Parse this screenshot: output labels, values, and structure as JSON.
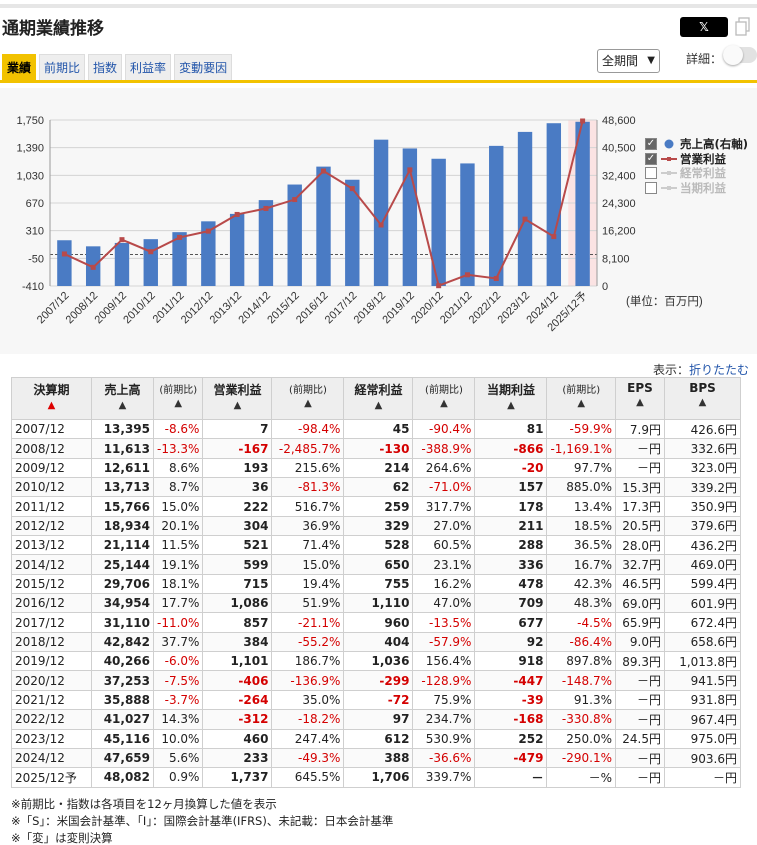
{
  "header": {
    "title": "通期業績推移",
    "share_label": "𝕏"
  },
  "tabs": [
    {
      "label": "業績",
      "active": true
    },
    {
      "label": "前期比",
      "active": false
    },
    {
      "label": "指数",
      "active": false
    },
    {
      "label": "利益率",
      "active": false
    },
    {
      "label": "変動要因",
      "active": false
    }
  ],
  "controls": {
    "period": "全期間",
    "detail_label": "詳細："
  },
  "chart_data": {
    "type": "bar",
    "categories": [
      "2007/12",
      "2008/12",
      "2009/12",
      "2010/12",
      "2011/12",
      "2012/12",
      "2013/12",
      "2014/12",
      "2015/12",
      "2016/12",
      "2017/12",
      "2018/12",
      "2019/12",
      "2020/12",
      "2021/12",
      "2022/12",
      "2023/12",
      "2024/12",
      "2025/12予"
    ],
    "series": [
      {
        "name": "売上高(右軸)",
        "type": "bar",
        "axis": "right",
        "color": "#4a7bc4",
        "values": [
          13395,
          11613,
          12611,
          13713,
          15766,
          18934,
          21114,
          25144,
          29706,
          34954,
          31110,
          42842,
          40266,
          37253,
          35888,
          41027,
          45116,
          47659,
          48082
        ]
      },
      {
        "name": "営業利益",
        "type": "line",
        "axis": "left",
        "color": "#b84a4a",
        "values": [
          7,
          -167,
          193,
          36,
          222,
          304,
          521,
          599,
          715,
          1086,
          857,
          384,
          1101,
          -406,
          -264,
          -312,
          460,
          233,
          1737
        ]
      }
    ],
    "left_axis": {
      "ticks": [
        "1,750",
        "1,390",
        "1,030",
        "670",
        "310",
        "-50",
        "-410"
      ],
      "range": [
        -410,
        1750
      ]
    },
    "right_axis": {
      "ticks": [
        "48,600",
        "40,500",
        "32,400",
        "24,300",
        "16,200",
        "8,100",
        "0"
      ],
      "range": [
        0,
        48600
      ]
    },
    "forecast_index": 18,
    "unit": "(単位：百万円)"
  },
  "legend": [
    {
      "label": "売上高(右軸)",
      "checked": true,
      "color": "#4a7bc4",
      "marker": "dot"
    },
    {
      "label": "営業利益",
      "checked": true,
      "color": "#b84a4a",
      "marker": "line"
    },
    {
      "label": "経常利益",
      "checked": false,
      "color": "#cccccc",
      "marker": "line"
    },
    {
      "label": "当期利益",
      "checked": false,
      "color": "#cccccc",
      "marker": "line"
    }
  ],
  "display": {
    "label": "表示：",
    "link": "折りたたむ"
  },
  "table": {
    "headers": [
      {
        "label": "決算期",
        "arrow": "▲",
        "red": true
      },
      {
        "label": "売上高",
        "arrow": "▲"
      },
      {
        "label": "(前期比)",
        "arrow": "▲",
        "sub": true
      },
      {
        "label": "営業利益",
        "arrow": "▲"
      },
      {
        "label": "(前期比)",
        "arrow": "▲",
        "sub": true
      },
      {
        "label": "経常利益",
        "arrow": "▲"
      },
      {
        "label": "(前期比)",
        "arrow": "▲",
        "sub": true
      },
      {
        "label": "当期利益",
        "arrow": "▲"
      },
      {
        "label": "(前期比)",
        "arrow": "▲",
        "sub": true
      },
      {
        "label": "EPS",
        "arrow": "▲"
      },
      {
        "label": "BPS",
        "arrow": "▲"
      }
    ],
    "rows": [
      [
        "2007/12",
        "13,395",
        "-8.6%",
        "7",
        "-98.4%",
        "45",
        "-90.4%",
        "81",
        "-59.9%",
        "7.9円",
        "426.6円"
      ],
      [
        "2008/12",
        "11,613",
        "-13.3%",
        "-167",
        "-2,485.7%",
        "-130",
        "-388.9%",
        "-866",
        "-1,169.1%",
        "－円",
        "332.6円"
      ],
      [
        "2009/12",
        "12,611",
        "8.6%",
        "193",
        "215.6%",
        "214",
        "264.6%",
        "-20",
        "97.7%",
        "－円",
        "323.0円"
      ],
      [
        "2010/12",
        "13,713",
        "8.7%",
        "36",
        "-81.3%",
        "62",
        "-71.0%",
        "157",
        "885.0%",
        "15.3円",
        "339.2円"
      ],
      [
        "2011/12",
        "15,766",
        "15.0%",
        "222",
        "516.7%",
        "259",
        "317.7%",
        "178",
        "13.4%",
        "17.3円",
        "350.9円"
      ],
      [
        "2012/12",
        "18,934",
        "20.1%",
        "304",
        "36.9%",
        "329",
        "27.0%",
        "211",
        "18.5%",
        "20.5円",
        "379.6円"
      ],
      [
        "2013/12",
        "21,114",
        "11.5%",
        "521",
        "71.4%",
        "528",
        "60.5%",
        "288",
        "36.5%",
        "28.0円",
        "436.2円"
      ],
      [
        "2014/12",
        "25,144",
        "19.1%",
        "599",
        "15.0%",
        "650",
        "23.1%",
        "336",
        "16.7%",
        "32.7円",
        "469.0円"
      ],
      [
        "2015/12",
        "29,706",
        "18.1%",
        "715",
        "19.4%",
        "755",
        "16.2%",
        "478",
        "42.3%",
        "46.5円",
        "599.4円"
      ],
      [
        "2016/12",
        "34,954",
        "17.7%",
        "1,086",
        "51.9%",
        "1,110",
        "47.0%",
        "709",
        "48.3%",
        "69.0円",
        "601.9円"
      ],
      [
        "2017/12",
        "31,110",
        "-11.0%",
        "857",
        "-21.1%",
        "960",
        "-13.5%",
        "677",
        "-4.5%",
        "65.9円",
        "672.4円"
      ],
      [
        "2018/12",
        "42,842",
        "37.7%",
        "384",
        "-55.2%",
        "404",
        "-57.9%",
        "92",
        "-86.4%",
        "9.0円",
        "658.6円"
      ],
      [
        "2019/12",
        "40,266",
        "-6.0%",
        "1,101",
        "186.7%",
        "1,036",
        "156.4%",
        "918",
        "897.8%",
        "89.3円",
        "1,013.8円"
      ],
      [
        "2020/12",
        "37,253",
        "-7.5%",
        "-406",
        "-136.9%",
        "-299",
        "-128.9%",
        "-447",
        "-148.7%",
        "－円",
        "941.5円"
      ],
      [
        "2021/12",
        "35,888",
        "-3.7%",
        "-264",
        "35.0%",
        "-72",
        "75.9%",
        "-39",
        "91.3%",
        "－円",
        "931.8円"
      ],
      [
        "2022/12",
        "41,027",
        "14.3%",
        "-312",
        "-18.2%",
        "97",
        "234.7%",
        "-168",
        "-330.8%",
        "－円",
        "967.4円"
      ],
      [
        "2023/12",
        "45,116",
        "10.0%",
        "460",
        "247.4%",
        "612",
        "530.9%",
        "252",
        "250.0%",
        "24.5円",
        "975.0円"
      ],
      [
        "2024/12",
        "47,659",
        "5.6%",
        "233",
        "-49.3%",
        "388",
        "-36.6%",
        "-479",
        "-290.1%",
        "－円",
        "903.6円"
      ],
      [
        "2025/12予",
        "48,082",
        "0.9%",
        "1,737",
        "645.5%",
        "1,706",
        "339.7%",
        "－",
        "－%",
        "－円",
        "－円"
      ]
    ]
  },
  "notes": [
    "※前期比・指数は各項目を12ヶ月換算した値を表示",
    "※「S」：米国会計基準、「I」：国際会計基準(IFRS)、未記載：日本会計基準",
    "※「変」は変則決算"
  ]
}
